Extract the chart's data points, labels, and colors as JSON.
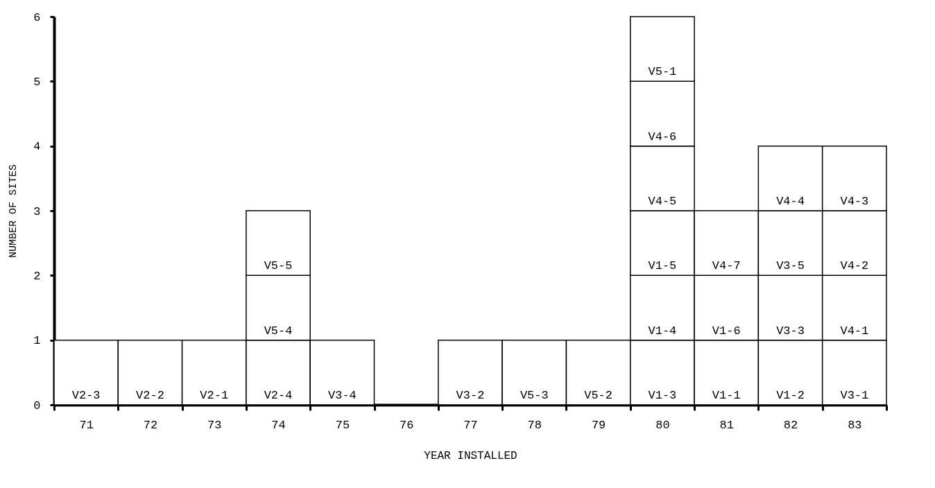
{
  "chart_data": {
    "type": "bar",
    "stacked": true,
    "xlabel": "YEAR INSTALLED",
    "ylabel": "NUMBER OF SITES",
    "categories": [
      "71",
      "72",
      "73",
      "74",
      "75",
      "76",
      "77",
      "78",
      "79",
      "80",
      "81",
      "82",
      "83"
    ],
    "series": [
      {
        "color": "#ffffff",
        "values": [
          1,
          1,
          1,
          1,
          1,
          null,
          1,
          1,
          1,
          1,
          1,
          1,
          1
        ]
      },
      {
        "color": "#ffffff",
        "values": [
          null,
          null,
          null,
          1,
          null,
          null,
          null,
          null,
          null,
          1,
          1,
          1,
          1
        ]
      },
      {
        "color": "#ffffff",
        "values": [
          null,
          null,
          null,
          1,
          null,
          null,
          null,
          null,
          null,
          1,
          1,
          1,
          1
        ]
      },
      {
        "color": "#ffffff",
        "values": [
          null,
          null,
          null,
          null,
          null,
          null,
          null,
          null,
          null,
          1,
          null,
          1,
          1
        ]
      },
      {
        "color": "#ffffff",
        "values": [
          null,
          null,
          null,
          null,
          null,
          null,
          null,
          null,
          null,
          1,
          null,
          null,
          null
        ]
      },
      {
        "color": "#ffffff",
        "values": [
          null,
          null,
          null,
          null,
          null,
          null,
          null,
          null,
          null,
          1,
          null,
          null,
          null
        ]
      }
    ],
    "ylim": [
      0,
      6
    ],
    "yticks": [
      0,
      1,
      2,
      3,
      4,
      5,
      6
    ],
    "grid": false,
    "annotations": [
      {
        "text": "V2-3",
        "x": "71",
        "y": 0
      },
      {
        "text": "V2-2",
        "x": "72",
        "y": 0
      },
      {
        "text": "V2-1",
        "x": "73",
        "y": 0
      },
      {
        "text": "V2-4",
        "x": "74",
        "y": 0
      },
      {
        "text": "V5-4",
        "x": "74",
        "y": 1
      },
      {
        "text": "V5-5",
        "x": "74",
        "y": 2
      },
      {
        "text": "V3-4",
        "x": "75",
        "y": 0
      },
      {
        "text": "V3-2",
        "x": "77",
        "y": 0
      },
      {
        "text": "V5-3",
        "x": "78",
        "y": 0
      },
      {
        "text": "V5-2",
        "x": "79",
        "y": 0
      },
      {
        "text": "V1-3",
        "x": "80",
        "y": 0
      },
      {
        "text": "V1-4",
        "x": "80",
        "y": 1
      },
      {
        "text": "V1-5",
        "x": "80",
        "y": 2
      },
      {
        "text": "V4-5",
        "x": "80",
        "y": 3
      },
      {
        "text": "V4-6",
        "x": "80",
        "y": 4
      },
      {
        "text": "V5-1",
        "x": "80",
        "y": 5
      },
      {
        "text": "V1-1",
        "x": "81",
        "y": 0
      },
      {
        "text": "V1-6",
        "x": "81",
        "y": 1
      },
      {
        "text": "V4-7",
        "x": "81",
        "y": 2
      },
      {
        "text": "V1-2",
        "x": "82",
        "y": 0
      },
      {
        "text": "V3-3",
        "x": "82",
        "y": 1
      },
      {
        "text": "V3-5",
        "x": "82",
        "y": 2
      },
      {
        "text": "V4-4",
        "x": "82",
        "y": 3
      },
      {
        "text": "V3-1",
        "x": "83",
        "y": 0
      },
      {
        "text": "V4-1",
        "x": "83",
        "y": 1
      },
      {
        "text": "V4-2",
        "x": "83",
        "y": 2
      },
      {
        "text": "V4-3",
        "x": "83",
        "y": 3
      }
    ]
  }
}
